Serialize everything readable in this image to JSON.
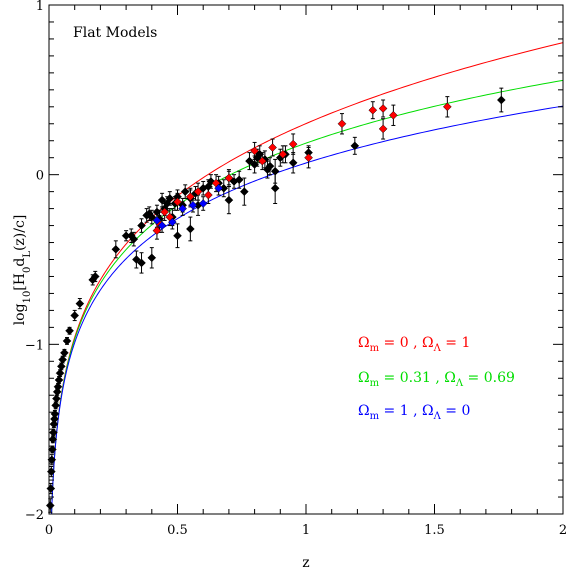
{
  "chart_data": {
    "type": "scatter",
    "title": "Flat Models",
    "xlabel": "z",
    "ylabel_parts": [
      "log",
      "10",
      "[H",
      "0",
      "d",
      "L",
      "(z)/c]"
    ],
    "xlim": [
      0,
      2
    ],
    "ylim": [
      -2,
      1
    ],
    "x_ticks": [
      {
        "value": 0,
        "label": "0"
      },
      {
        "value": 0.5,
        "label": "0.5"
      },
      {
        "value": 1,
        "label": "1"
      },
      {
        "value": 1.5,
        "label": "1.5"
      },
      {
        "value": 2,
        "label": "2"
      }
    ],
    "y_ticks": [
      {
        "value": -2,
        "label": "−2"
      },
      {
        "value": -1,
        "label": "−1"
      },
      {
        "value": 0,
        "label": "0"
      },
      {
        "value": 1,
        "label": "1"
      }
    ],
    "models": [
      {
        "omega_m": 0,
        "omega_l": 1,
        "color": "#ff0000",
        "label": {
          "om_sym": "Ω",
          "om_sub": "m",
          "om_val": " = 0 , ",
          "ol_sym": "Ω",
          "ol_sub": "Λ",
          "ol_val": " = 1"
        }
      },
      {
        "omega_m": 0.31,
        "omega_l": 0.69,
        "color": "#00dd00",
        "label": {
          "om_sym": "Ω",
          "om_sub": "m",
          "om_val": " = 0.31 , ",
          "ol_sym": "Ω",
          "ol_sub": "Λ",
          "ol_val": " = 0.69"
        }
      },
      {
        "omega_m": 1,
        "omega_l": 0,
        "color": "#0000ff",
        "label": {
          "om_sym": "Ω",
          "om_sub": "m",
          "om_val": " = 1 , ",
          "ol_sym": "Ω",
          "ol_sub": "Λ",
          "ol_val": " = 0"
        }
      }
    ],
    "series": [
      {
        "name": "",
        "color": "#000000",
        "points": [
          [
            0.005,
            -1.95,
            0.04
          ],
          [
            0.007,
            -1.85,
            0.03
          ],
          [
            0.009,
            -1.75,
            0.03
          ],
          [
            0.011,
            -1.68,
            0.03
          ],
          [
            0.013,
            -1.62,
            0.02
          ],
          [
            0.015,
            -1.56,
            0.02
          ],
          [
            0.017,
            -1.52,
            0.02
          ],
          [
            0.019,
            -1.47,
            0.02
          ],
          [
            0.021,
            -1.44,
            0.02
          ],
          [
            0.023,
            -1.41,
            0.02
          ],
          [
            0.026,
            -1.36,
            0.02
          ],
          [
            0.029,
            -1.32,
            0.02
          ],
          [
            0.032,
            -1.28,
            0.02
          ],
          [
            0.035,
            -1.25,
            0.02
          ],
          [
            0.039,
            -1.21,
            0.02
          ],
          [
            0.043,
            -1.17,
            0.02
          ],
          [
            0.048,
            -1.13,
            0.02
          ],
          [
            0.053,
            -1.09,
            0.02
          ],
          [
            0.06,
            -1.05,
            0.02
          ],
          [
            0.07,
            -0.98,
            0.02
          ],
          [
            0.08,
            -0.92,
            0.02
          ],
          [
            0.1,
            -0.83,
            0.03
          ],
          [
            0.12,
            -0.76,
            0.03
          ],
          [
            0.17,
            -0.62,
            0.03
          ],
          [
            0.18,
            -0.6,
            0.03
          ],
          [
            0.26,
            -0.44,
            0.05
          ],
          [
            0.3,
            -0.36,
            0.03
          ],
          [
            0.32,
            -0.36,
            0.04
          ],
          [
            0.33,
            -0.38,
            0.04
          ],
          [
            0.36,
            -0.3,
            0.04
          ],
          [
            0.38,
            -0.24,
            0.04
          ],
          [
            0.39,
            -0.23,
            0.04
          ],
          [
            0.4,
            -0.25,
            0.04
          ],
          [
            0.42,
            -0.22,
            0.04
          ],
          [
            0.43,
            -0.26,
            0.05
          ],
          [
            0.44,
            -0.15,
            0.04
          ],
          [
            0.45,
            -0.2,
            0.04
          ],
          [
            0.46,
            -0.17,
            0.04
          ],
          [
            0.47,
            -0.14,
            0.04
          ],
          [
            0.48,
            -0.25,
            0.05
          ],
          [
            0.49,
            -0.17,
            0.04
          ],
          [
            0.5,
            -0.13,
            0.04
          ],
          [
            0.52,
            -0.18,
            0.04
          ],
          [
            0.53,
            -0.1,
            0.04
          ],
          [
            0.55,
            -0.14,
            0.05
          ],
          [
            0.57,
            -0.11,
            0.04
          ],
          [
            0.6,
            -0.08,
            0.04
          ],
          [
            0.62,
            -0.07,
            0.04
          ],
          [
            0.63,
            -0.04,
            0.04
          ],
          [
            0.66,
            -0.05,
            0.04
          ],
          [
            0.68,
            -0.08,
            0.05
          ],
          [
            0.7,
            -0.02,
            0.04
          ],
          [
            0.72,
            -0.04,
            0.04
          ],
          [
            0.74,
            -0.03,
            0.05
          ],
          [
            0.78,
            0.08,
            0.05
          ],
          [
            0.8,
            0.06,
            0.05
          ],
          [
            0.81,
            0.1,
            0.05
          ],
          [
            0.82,
            0.12,
            0.05
          ],
          [
            0.84,
            0.09,
            0.05
          ],
          [
            0.85,
            0.03,
            0.05
          ],
          [
            0.86,
            0.05,
            0.05
          ],
          [
            0.88,
            0.02,
            0.07
          ],
          [
            0.9,
            0.1,
            0.05
          ],
          [
            0.92,
            0.12,
            0.05
          ],
          [
            0.95,
            0.07,
            0.06
          ],
          [
            1.01,
            0.13,
            0.04
          ],
          [
            1.19,
            0.17,
            0.05
          ],
          [
            1.76,
            0.44,
            0.07
          ],
          [
            0.34,
            -0.5,
            0.05
          ],
          [
            0.36,
            -0.52,
            0.06
          ],
          [
            0.4,
            -0.49,
            0.06
          ],
          [
            0.5,
            -0.36,
            0.07
          ],
          [
            0.55,
            -0.32,
            0.07
          ],
          [
            0.58,
            -0.18,
            0.06
          ],
          [
            0.7,
            -0.15,
            0.08
          ],
          [
            0.76,
            -0.1,
            0.08
          ],
          [
            0.88,
            -0.08,
            0.09
          ]
        ]
      },
      {
        "name": "",
        "color": "#ff0000",
        "points": [
          [
            0.42,
            -0.33,
            0.05
          ],
          [
            0.43,
            -0.29,
            0.05
          ],
          [
            0.45,
            -0.22,
            0.05
          ],
          [
            0.47,
            -0.25,
            0.05
          ],
          [
            0.5,
            -0.16,
            0.05
          ],
          [
            0.55,
            -0.13,
            0.05
          ],
          [
            0.58,
            -0.1,
            0.05
          ],
          [
            0.62,
            -0.12,
            0.05
          ],
          [
            0.65,
            -0.05,
            0.05
          ],
          [
            0.7,
            -0.02,
            0.05
          ],
          [
            0.8,
            0.14,
            0.05
          ],
          [
            0.83,
            0.08,
            0.05
          ],
          [
            0.87,
            0.16,
            0.05
          ],
          [
            0.91,
            0.12,
            0.05
          ],
          [
            0.95,
            0.18,
            0.06
          ],
          [
            1.01,
            0.1,
            0.06
          ],
          [
            1.14,
            0.3,
            0.06
          ],
          [
            1.26,
            0.38,
            0.05
          ],
          [
            1.3,
            0.39,
            0.05
          ],
          [
            1.3,
            0.27,
            0.06
          ],
          [
            1.34,
            0.35,
            0.06
          ],
          [
            1.55,
            0.4,
            0.06
          ]
        ]
      },
      {
        "name": "",
        "color": "#0000ff",
        "points": [
          [
            0.42,
            -0.27,
            0.04
          ],
          [
            0.44,
            -0.3,
            0.04
          ],
          [
            0.48,
            -0.28,
            0.04
          ],
          [
            0.52,
            -0.2,
            0.04
          ],
          [
            0.56,
            -0.18,
            0.04
          ],
          [
            0.6,
            -0.17,
            0.04
          ],
          [
            0.66,
            -0.08,
            0.04
          ]
        ]
      }
    ],
    "grid": false,
    "legend_location": "center-right"
  }
}
